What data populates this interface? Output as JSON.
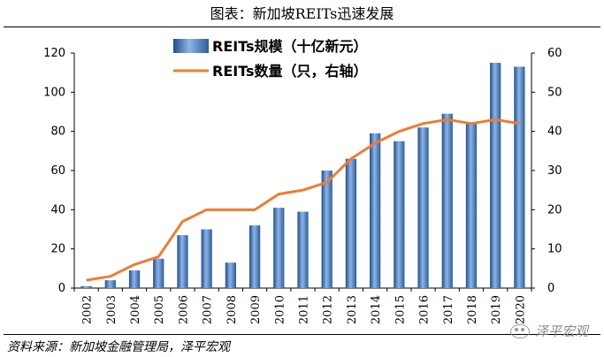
{
  "title": "图表：新加坡REITs迅速发展",
  "source": "资料来源：新加坡金融管理局，泽平宏观",
  "watermark": "泽平宏观",
  "chart_data": {
    "type": "bar",
    "categories": [
      "2002",
      "2003",
      "2004",
      "2005",
      "2006",
      "2007",
      "2008",
      "2009",
      "2010",
      "2011",
      "2012",
      "2013",
      "2014",
      "2015",
      "2016",
      "2017",
      "2018",
      "2019",
      "2020"
    ],
    "series": [
      {
        "name": "REITs规模（十亿新元）",
        "type": "bar",
        "axis": "left",
        "color": "#4a7fc1",
        "values": [
          1,
          4,
          9,
          15,
          27,
          30,
          13,
          32,
          41,
          39,
          60,
          66,
          79,
          75,
          82,
          89,
          84,
          115,
          113
        ]
      },
      {
        "name": "REITs数量（只，右轴）",
        "type": "line",
        "axis": "right",
        "color": "#ed7d31",
        "values": [
          2,
          3,
          6,
          8,
          17,
          20,
          20,
          20,
          24,
          25,
          27,
          33,
          37,
          40,
          42,
          43,
          42,
          43,
          42
        ]
      }
    ],
    "y_left": {
      "min": 0,
      "max": 120,
      "ticks": [
        0,
        20,
        40,
        60,
        80,
        100,
        120
      ]
    },
    "y_right": {
      "min": 0,
      "max": 60,
      "ticks": [
        0,
        10,
        20,
        30,
        40,
        50,
        60
      ]
    },
    "legend_position": "top-center",
    "grid": false
  }
}
